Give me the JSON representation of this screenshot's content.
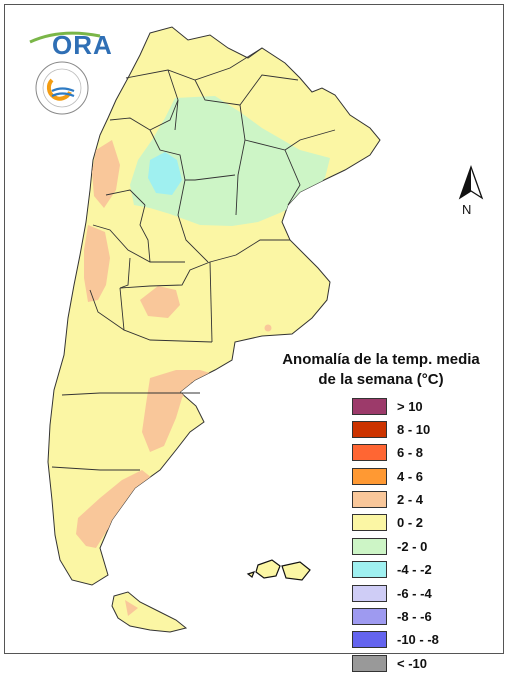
{
  "logo": {
    "text": "ORA",
    "seal_text": "INSTITUTO NACIONAL DE TECNOLOGÍA AGROPECUARIA · ARGENTINA"
  },
  "north_arrow": {
    "label": "N"
  },
  "legend": {
    "title_line1": "Anomalía de la temp. media",
    "title_line2": "de la semana (°C)",
    "items": [
      {
        "label": "> 10",
        "color": "#9c3a6a"
      },
      {
        "label": "8 - 10",
        "color": "#cc3300"
      },
      {
        "label": "6 - 8",
        "color": "#ff6633"
      },
      {
        "label": "4 - 6",
        "color": "#ff9933"
      },
      {
        "label": "2 - 4",
        "color": "#f9c79a"
      },
      {
        "label": "0 - 2",
        "color": "#fbf6a4"
      },
      {
        "label": "-2 - 0",
        "color": "#cdf5c6"
      },
      {
        "label": "-4 - -2",
        "color": "#9ff0f0"
      },
      {
        "label": "-6 - -4",
        "color": "#cfcdf6"
      },
      {
        "label": "-8 - -6",
        "color": "#9e9af0"
      },
      {
        "label": "-10 - -8",
        "color": "#6464ef"
      },
      {
        "label": "< -10",
        "color": "#999999"
      }
    ]
  }
}
